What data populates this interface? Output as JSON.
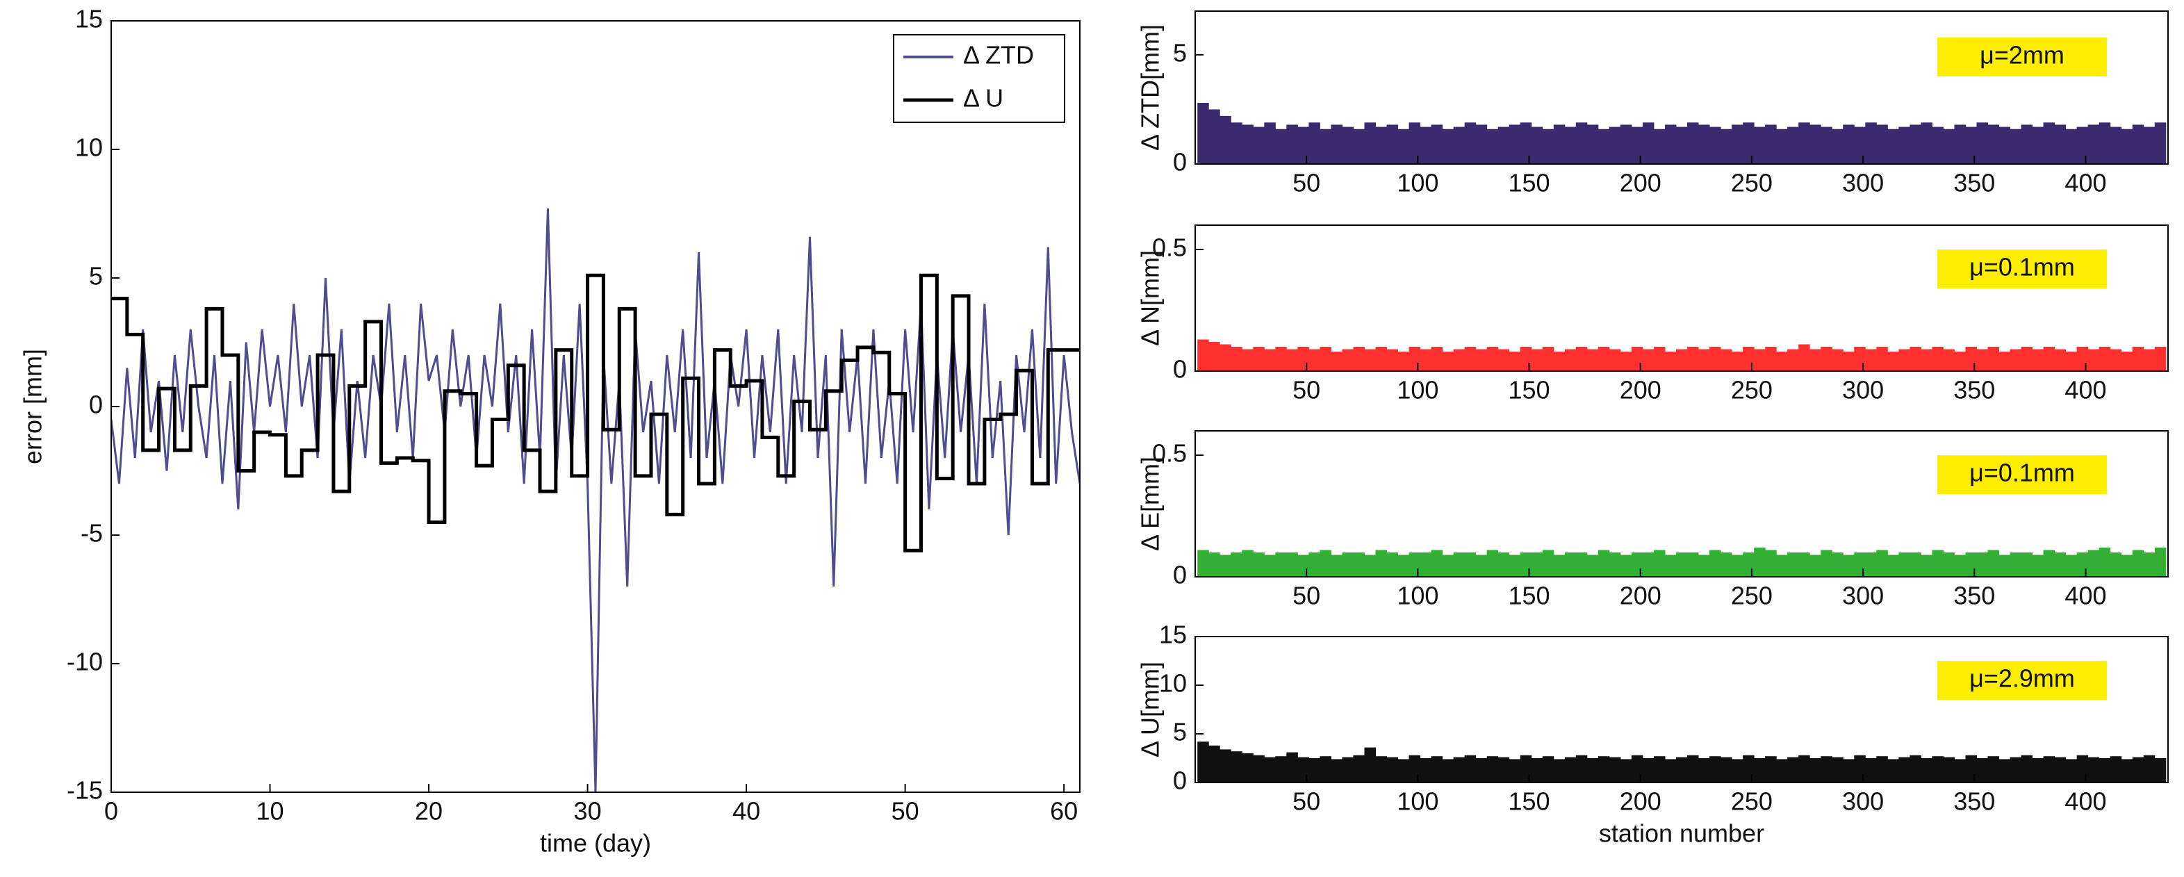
{
  "chart_data": [
    {
      "type": "line",
      "xlabel": "time (day)",
      "ylabel": "error [mm]",
      "xlim": [
        0,
        61
      ],
      "xticks": [
        0,
        10,
        20,
        30,
        40,
        50,
        60
      ],
      "ylim": [
        -15,
        15
      ],
      "yticks": [
        -15,
        -10,
        -5,
        0,
        5,
        10,
        15
      ],
      "legend": "upper right",
      "series": [
        {
          "name": "Δ ZTD",
          "color": "#4f4c8f",
          "x": [
            0,
            0.5,
            1,
            1.5,
            2,
            2.5,
            3,
            3.5,
            4,
            4.5,
            5,
            5.5,
            6,
            6.5,
            7,
            7.5,
            8,
            8.5,
            9,
            9.5,
            10,
            10.5,
            11,
            11.5,
            12,
            12.5,
            13,
            13.5,
            14,
            14.5,
            15,
            15.5,
            16,
            16.5,
            17,
            17.5,
            18,
            18.5,
            19,
            19.5,
            20,
            20.5,
            21,
            21.5,
            22,
            22.5,
            23,
            23.5,
            24,
            24.5,
            25,
            25.5,
            26,
            26.5,
            27,
            27.5,
            28,
            28.5,
            29,
            29.5,
            30,
            30.5,
            31,
            31.5,
            32,
            32.5,
            33,
            33.5,
            34,
            34.5,
            35,
            35.5,
            36,
            36.5,
            37,
            37.5,
            38,
            38.5,
            39,
            39.5,
            40,
            40.5,
            41,
            41.5,
            42,
            42.5,
            43,
            43.5,
            44,
            44.5,
            45,
            45.5,
            46,
            46.5,
            47,
            47.5,
            48,
            48.5,
            49,
            49.5,
            50,
            50.5,
            51,
            51.5,
            52,
            52.5,
            53,
            53.5,
            54,
            54.5,
            55,
            55.5,
            56,
            56.5,
            57,
            57.5,
            58,
            58.5,
            59,
            59.5,
            60,
            60.5,
            61
          ],
          "values": [
            -0.5,
            -3,
            1.5,
            -2,
            3,
            -1,
            1,
            -2.5,
            2,
            -1,
            3,
            0,
            -2,
            2,
            -3,
            1,
            -4,
            2.5,
            -1,
            3,
            0,
            2,
            -1,
            4,
            0,
            2,
            -2,
            5,
            -1,
            3,
            -3,
            1,
            -2,
            2,
            0,
            4,
            -1,
            2,
            -2,
            4,
            1,
            2,
            -1,
            3,
            0,
            2,
            -2,
            2,
            0,
            4,
            -1,
            2,
            -3,
            3,
            -2,
            7.7,
            -3,
            2,
            -2,
            4,
            -3,
            -15,
            2,
            -3,
            1,
            -7,
            3,
            -1,
            1,
            -3,
            2,
            -1,
            3,
            -2,
            6,
            -2,
            1,
            -3,
            2,
            0,
            3,
            -2,
            2,
            -1,
            3,
            -3,
            2,
            -1,
            6.6,
            -2,
            2,
            -7,
            3,
            -1,
            2,
            -3,
            3,
            -2,
            1,
            -3,
            3,
            -1,
            4,
            -4,
            2,
            -2,
            3,
            -1,
            2,
            -3,
            4,
            -2,
            1,
            -5,
            2,
            -1,
            3,
            -2,
            6.2,
            -3,
            2,
            -1,
            -3
          ]
        },
        {
          "name": "Δ U",
          "color": "#000000",
          "drawstyle": "steps-post",
          "x": [
            0,
            1,
            2,
            3,
            4,
            5,
            6,
            7,
            8,
            9,
            10,
            11,
            12,
            13,
            14,
            15,
            16,
            17,
            18,
            19,
            20,
            21,
            22,
            23,
            24,
            25,
            26,
            27,
            28,
            29,
            30,
            31,
            32,
            33,
            34,
            35,
            36,
            37,
            38,
            39,
            40,
            41,
            42,
            43,
            44,
            45,
            46,
            47,
            48,
            49,
            50,
            51,
            52,
            53,
            54,
            55,
            56,
            57,
            58,
            59,
            60,
            61
          ],
          "values": [
            4.2,
            2.8,
            -1.7,
            0.7,
            -1.7,
            0.8,
            3.8,
            2,
            -2.5,
            -1,
            -1.1,
            -2.7,
            -1.7,
            2,
            -3.3,
            0.8,
            3.3,
            -2.2,
            -2,
            -2.1,
            -4.5,
            0.6,
            0.5,
            -2.3,
            -0.5,
            1.6,
            -1.7,
            -3.3,
            2.2,
            -2.7,
            5.1,
            -0.9,
            3.8,
            -2.7,
            -0.3,
            -4.2,
            1.1,
            -3,
            2.2,
            0.8,
            1,
            -1.2,
            -2.7,
            0.2,
            -0.9,
            0.6,
            1.8,
            2.3,
            2.1,
            0.5,
            -5.6,
            5.1,
            -2.8,
            4.3,
            -3,
            -0.5,
            -0.3,
            1.4,
            -3,
            2.2,
            2.2,
            2.2
          ]
        }
      ]
    },
    {
      "type": "bar",
      "ylabel": "Δ ZTD[mm]",
      "annotation": "μ=2mm",
      "color": "#3b2a6e",
      "xlim": [
        0,
        437
      ],
      "xticks": [
        50,
        100,
        150,
        200,
        250,
        300,
        350,
        400
      ],
      "ylim": [
        0,
        7
      ],
      "yticks": [
        0,
        5
      ],
      "x": [
        1,
        6,
        11,
        16,
        21,
        26,
        31,
        36,
        41,
        46,
        51,
        56,
        61,
        66,
        71,
        76,
        81,
        86,
        91,
        96,
        101,
        106,
        111,
        116,
        121,
        126,
        131,
        136,
        141,
        146,
        151,
        156,
        161,
        166,
        171,
        176,
        181,
        186,
        191,
        196,
        201,
        206,
        211,
        216,
        221,
        226,
        231,
        236,
        241,
        246,
        251,
        256,
        261,
        266,
        271,
        276,
        281,
        286,
        291,
        296,
        301,
        306,
        311,
        316,
        321,
        326,
        331,
        336,
        341,
        346,
        351,
        356,
        361,
        366,
        371,
        376,
        381,
        386,
        391,
        396,
        401,
        406,
        411,
        416,
        421,
        426,
        431
      ],
      "values": [
        2.8,
        2.5,
        2.2,
        1.9,
        1.8,
        1.7,
        1.9,
        1.6,
        1.8,
        1.7,
        1.9,
        1.6,
        1.8,
        1.7,
        1.6,
        1.9,
        1.7,
        1.8,
        1.6,
        1.9,
        1.7,
        1.8,
        1.6,
        1.7,
        1.9,
        1.8,
        1.6,
        1.7,
        1.8,
        1.9,
        1.7,
        1.6,
        1.8,
        1.7,
        1.9,
        1.8,
        1.6,
        1.7,
        1.8,
        1.7,
        1.9,
        1.6,
        1.8,
        1.7,
        1.9,
        1.8,
        1.7,
        1.6,
        1.8,
        1.9,
        1.7,
        1.8,
        1.6,
        1.7,
        1.9,
        1.8,
        1.7,
        1.6,
        1.8,
        1.7,
        1.9,
        1.8,
        1.6,
        1.7,
        1.8,
        1.9,
        1.7,
        1.6,
        1.8,
        1.7,
        1.9,
        1.8,
        1.7,
        1.6,
        1.8,
        1.7,
        1.9,
        1.8,
        1.6,
        1.7,
        1.8,
        1.9,
        1.7,
        1.6,
        1.8,
        1.7,
        1.9
      ]
    },
    {
      "type": "bar",
      "ylabel": "Δ N[mm]",
      "annotation": "μ=0.1mm",
      "color": "#ff3030",
      "xlim": [
        0,
        437
      ],
      "xticks": [
        50,
        100,
        150,
        200,
        250,
        300,
        350,
        400
      ],
      "ylim": [
        0,
        0.6
      ],
      "yticks": [
        0,
        0.5
      ],
      "x": [
        1,
        6,
        11,
        16,
        21,
        26,
        31,
        36,
        41,
        46,
        51,
        56,
        61,
        66,
        71,
        76,
        81,
        86,
        91,
        96,
        101,
        106,
        111,
        116,
        121,
        126,
        131,
        136,
        141,
        146,
        151,
        156,
        161,
        166,
        171,
        176,
        181,
        186,
        191,
        196,
        201,
        206,
        211,
        216,
        221,
        226,
        231,
        236,
        241,
        246,
        251,
        256,
        261,
        266,
        271,
        276,
        281,
        286,
        291,
        296,
        301,
        306,
        311,
        316,
        321,
        326,
        331,
        336,
        341,
        346,
        351,
        356,
        361,
        366,
        371,
        376,
        381,
        386,
        391,
        396,
        401,
        406,
        411,
        416,
        421,
        426,
        431
      ],
      "values": [
        0.13,
        0.12,
        0.11,
        0.1,
        0.09,
        0.1,
        0.09,
        0.1,
        0.09,
        0.1,
        0.09,
        0.1,
        0.08,
        0.09,
        0.1,
        0.09,
        0.1,
        0.09,
        0.08,
        0.1,
        0.09,
        0.1,
        0.08,
        0.09,
        0.1,
        0.09,
        0.1,
        0.09,
        0.08,
        0.1,
        0.09,
        0.1,
        0.08,
        0.09,
        0.1,
        0.09,
        0.1,
        0.09,
        0.08,
        0.1,
        0.09,
        0.1,
        0.08,
        0.09,
        0.1,
        0.09,
        0.1,
        0.09,
        0.08,
        0.1,
        0.09,
        0.1,
        0.08,
        0.09,
        0.11,
        0.09,
        0.1,
        0.09,
        0.08,
        0.1,
        0.09,
        0.1,
        0.08,
        0.09,
        0.1,
        0.09,
        0.1,
        0.09,
        0.08,
        0.1,
        0.09,
        0.1,
        0.08,
        0.09,
        0.1,
        0.09,
        0.1,
        0.09,
        0.08,
        0.1,
        0.09,
        0.1,
        0.09,
        0.08,
        0.1,
        0.09,
        0.1
      ]
    },
    {
      "type": "bar",
      "ylabel": "Δ E[mm]",
      "annotation": "μ=0.1mm",
      "color": "#33b033",
      "xlim": [
        0,
        437
      ],
      "xticks": [
        50,
        100,
        150,
        200,
        250,
        300,
        350,
        400
      ],
      "ylim": [
        0,
        0.6
      ],
      "yticks": [
        0,
        0.5
      ],
      "x": [
        1,
        6,
        11,
        16,
        21,
        26,
        31,
        36,
        41,
        46,
        51,
        56,
        61,
        66,
        71,
        76,
        81,
        86,
        91,
        96,
        101,
        106,
        111,
        116,
        121,
        126,
        131,
        136,
        141,
        146,
        151,
        156,
        161,
        166,
        171,
        176,
        181,
        186,
        191,
        196,
        201,
        206,
        211,
        216,
        221,
        226,
        231,
        236,
        241,
        246,
        251,
        256,
        261,
        266,
        271,
        276,
        281,
        286,
        291,
        296,
        301,
        306,
        311,
        316,
        321,
        326,
        331,
        336,
        341,
        346,
        351,
        356,
        361,
        366,
        371,
        376,
        381,
        386,
        391,
        396,
        401,
        406,
        411,
        416,
        421,
        426,
        431
      ],
      "values": [
        0.11,
        0.1,
        0.09,
        0.1,
        0.11,
        0.1,
        0.09,
        0.1,
        0.1,
        0.09,
        0.1,
        0.11,
        0.09,
        0.1,
        0.1,
        0.09,
        0.11,
        0.1,
        0.09,
        0.1,
        0.1,
        0.11,
        0.09,
        0.1,
        0.1,
        0.09,
        0.11,
        0.1,
        0.09,
        0.1,
        0.1,
        0.11,
        0.09,
        0.1,
        0.1,
        0.09,
        0.11,
        0.1,
        0.09,
        0.1,
        0.1,
        0.11,
        0.09,
        0.1,
        0.1,
        0.09,
        0.11,
        0.1,
        0.09,
        0.1,
        0.12,
        0.11,
        0.09,
        0.1,
        0.1,
        0.09,
        0.11,
        0.1,
        0.09,
        0.1,
        0.1,
        0.11,
        0.09,
        0.1,
        0.1,
        0.09,
        0.11,
        0.1,
        0.09,
        0.1,
        0.1,
        0.11,
        0.09,
        0.1,
        0.1,
        0.09,
        0.11,
        0.1,
        0.09,
        0.1,
        0.11,
        0.12,
        0.1,
        0.09,
        0.11,
        0.1,
        0.12
      ]
    },
    {
      "type": "bar",
      "ylabel": "Δ U[mm]",
      "annotation": "μ=2.9mm",
      "color": "#111111",
      "xlabel": "station number",
      "xlim": [
        0,
        437
      ],
      "xticks": [
        50,
        100,
        150,
        200,
        250,
        300,
        350,
        400
      ],
      "ylim": [
        0,
        15
      ],
      "yticks": [
        0,
        5,
        10,
        15
      ],
      "x": [
        1,
        6,
        11,
        16,
        21,
        26,
        31,
        36,
        41,
        46,
        51,
        56,
        61,
        66,
        71,
        76,
        81,
        86,
        91,
        96,
        101,
        106,
        111,
        116,
        121,
        126,
        131,
        136,
        141,
        146,
        151,
        156,
        161,
        166,
        171,
        176,
        181,
        186,
        191,
        196,
        201,
        206,
        211,
        216,
        221,
        226,
        231,
        236,
        241,
        246,
        251,
        256,
        261,
        266,
        271,
        276,
        281,
        286,
        291,
        296,
        301,
        306,
        311,
        316,
        321,
        326,
        331,
        336,
        341,
        346,
        351,
        356,
        361,
        366,
        371,
        376,
        381,
        386,
        391,
        396,
        401,
        406,
        411,
        416,
        421,
        426,
        431
      ],
      "values": [
        4.2,
        3.8,
        3.4,
        3.2,
        3,
        2.8,
        2.6,
        2.7,
        3.1,
        2.6,
        2.5,
        2.7,
        2.4,
        2.6,
        2.8,
        3.6,
        2.7,
        2.6,
        2.4,
        2.8,
        2.5,
        2.7,
        2.4,
        2.6,
        2.8,
        2.5,
        2.7,
        2.6,
        2.4,
        2.8,
        2.5,
        2.7,
        2.4,
        2.6,
        2.8,
        2.5,
        2.7,
        2.6,
        2.4,
        2.8,
        2.5,
        2.7,
        2.4,
        2.6,
        2.8,
        2.5,
        2.7,
        2.6,
        2.4,
        2.8,
        2.5,
        2.7,
        2.4,
        2.6,
        2.8,
        2.5,
        2.7,
        2.6,
        2.4,
        2.8,
        2.5,
        2.7,
        2.4,
        2.6,
        2.8,
        2.5,
        2.7,
        2.6,
        2.4,
        2.8,
        2.5,
        2.7,
        2.4,
        2.6,
        2.8,
        2.5,
        2.7,
        2.6,
        2.4,
        2.8,
        2.6,
        2.5,
        2.7,
        2.4,
        2.6,
        2.8,
        2.5
      ]
    }
  ]
}
